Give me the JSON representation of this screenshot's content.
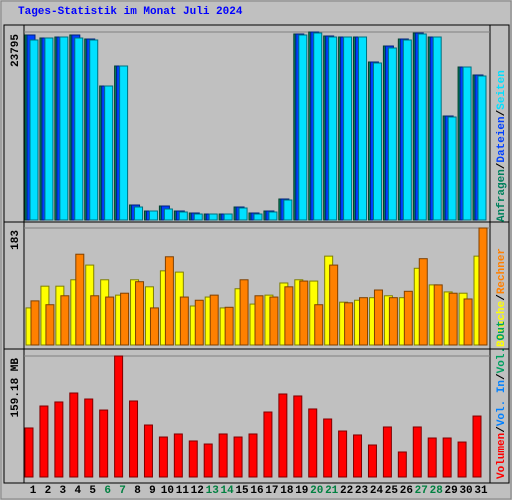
{
  "legend_separator": "/",
  "chart_data": [
    {
      "type": "bar",
      "title": "Tages-Statistik im Monat Juli 2024",
      "ylim": [
        0,
        23795
      ],
      "yticks": [
        23795
      ],
      "grid": true,
      "series": [
        {
          "name": "Anfragen",
          "color": "#00805c",
          "values": [
            23416,
            23036,
            23162,
            23416,
            22909,
            16960,
            19492,
            1899,
            1139,
            1772,
            1139,
            886,
            759,
            759,
            1645,
            886,
            1139,
            2658,
            23542,
            23795,
            23289,
            23162,
            23162,
            19998,
            22023,
            22909,
            23669,
            23162,
            13163,
            19365,
            18353
          ]
        },
        {
          "name": "Dateien",
          "color": "#0040ff",
          "values": [
            23416,
            23036,
            23162,
            23416,
            22909,
            16960,
            19492,
            1899,
            1139,
            1772,
            1139,
            886,
            759,
            759,
            1645,
            886,
            1139,
            2658,
            23542,
            23795,
            23289,
            23162,
            23162,
            19998,
            22023,
            22909,
            23669,
            23162,
            13163,
            19365,
            18353
          ]
        },
        {
          "name": "Seiten",
          "color": "#00e0ff",
          "values": [
            22783,
            23036,
            23162,
            23036,
            22783,
            16960,
            19492,
            1645,
            1139,
            1392,
            1013,
            759,
            759,
            759,
            1519,
            759,
            1013,
            2531,
            23416,
            23669,
            23162,
            23162,
            23162,
            19871,
            21770,
            22783,
            23542,
            23162,
            13037,
            19365,
            18226
          ]
        }
      ]
    },
    {
      "type": "bar",
      "ylim": [
        0,
        183
      ],
      "yticks": [
        183
      ],
      "grid": true,
      "series": [
        {
          "name": "Besuche",
          "color": "#ffff00",
          "values": [
            58,
            92,
            92,
            102,
            125,
            102,
            78,
            102,
            91,
            116,
            114,
            61,
            75,
            58,
            88,
            64,
            78,
            97,
            102,
            100,
            139,
            67,
            70,
            74,
            77,
            74,
            120,
            94,
            83,
            81,
            139
          ]
        },
        {
          "name": "Rechner",
          "color": "#ff8000",
          "values": [
            69,
            63,
            77,
            142,
            77,
            75,
            81,
            99,
            58,
            138,
            75,
            70,
            78,
            59,
            102,
            77,
            75,
            91,
            100,
            63,
            125,
            66,
            74,
            86,
            74,
            84,
            135,
            94,
            81,
            72,
            183
          ]
        }
      ]
    },
    {
      "type": "bar",
      "categories": [
        "1",
        "2",
        "3",
        "4",
        "5",
        "6",
        "7",
        "8",
        "9",
        "10",
        "11",
        "12",
        "13",
        "14",
        "15",
        "16",
        "17",
        "18",
        "19",
        "20",
        "21",
        "22",
        "23",
        "24",
        "25",
        "26",
        "27",
        "28",
        "29",
        "30",
        "31"
      ],
      "category_colors": [
        "#000000",
        "#000000",
        "#000000",
        "#000000",
        "#000000",
        "#008040",
        "#008040",
        "#000000",
        "#000000",
        "#000000",
        "#000000",
        "#000000",
        "#008040",
        "#008040",
        "#000000",
        "#000000",
        "#000000",
        "#000000",
        "#000000",
        "#008040",
        "#008040",
        "#000000",
        "#000000",
        "#000000",
        "#000000",
        "#000000",
        "#008040",
        "#008040",
        "#000000",
        "#000000",
        "#000000"
      ],
      "ylim": [
        0,
        159.18
      ],
      "yticks": [
        {
          "value": 159.18,
          "label": "159.18 MB"
        }
      ],
      "grid": true,
      "series": [
        {
          "name": "Volumen",
          "color": "#ff0000",
          "values": [
            64.5,
            93.4,
            98.7,
            110.5,
            102.6,
            88.1,
            159.18,
            100.0,
            68.4,
            52.6,
            56.6,
            47.4,
            43.4,
            56.6,
            52.6,
            56.6,
            85.5,
            109.2,
            106.6,
            89.5,
            76.3,
            60.5,
            55.3,
            42.1,
            65.8,
            32.9,
            65.8,
            51.3,
            51.3,
            46.0,
            80.2
          ]
        },
        {
          "name": "Vol. In",
          "color": "#0080ff",
          "values": [
            0,
            0,
            0,
            0,
            0,
            0,
            0,
            0,
            0,
            0,
            0,
            0,
            0,
            0,
            0,
            0,
            0,
            0,
            0,
            0,
            0,
            0,
            0,
            0,
            0,
            0,
            0,
            0,
            0,
            0,
            0
          ]
        },
        {
          "name": "Vol. Out",
          "color": "#00a060",
          "values": [
            0,
            0,
            0,
            0,
            0,
            0,
            0,
            0,
            0,
            0,
            0,
            0,
            0,
            0,
            0,
            0,
            0,
            0,
            0,
            0,
            0,
            0,
            0,
            0,
            0,
            0,
            0,
            0,
            0,
            0,
            0
          ]
        }
      ]
    }
  ]
}
